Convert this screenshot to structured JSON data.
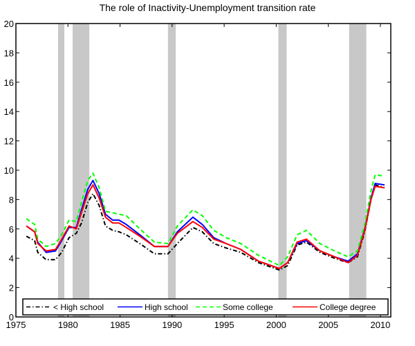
{
  "chart_data": {
    "type": "line",
    "title": "The role of Inactivity-Unemployment transition rate",
    "xlabel": "",
    "ylabel": "",
    "xlim": [
      1975,
      2011
    ],
    "ylim": [
      0,
      20
    ],
    "xticks": [
      1975,
      1980,
      1985,
      1990,
      1995,
      2000,
      2005,
      2010
    ],
    "yticks": [
      0,
      2,
      4,
      6,
      8,
      10,
      12,
      14,
      16,
      18,
      20
    ],
    "grid": false,
    "legend_position": "bottom",
    "shaded_periods": [
      [
        1979.05,
        1979.65
      ],
      [
        1980.45,
        1982.05
      ],
      [
        1989.6,
        1990.35
      ],
      [
        2000.2,
        2001.0
      ],
      [
        2007.0,
        2008.65
      ]
    ],
    "shade_color": "#c8c8c8",
    "x": [
      1976.0,
      1976.8,
      1977.1,
      1977.9,
      1978.8,
      1979.4,
      1980.1,
      1980.8,
      1981.3,
      1981.9,
      1982.4,
      1983.0,
      1983.6,
      1984.3,
      1984.9,
      1985.6,
      1986.9,
      1988.3,
      1989.6,
      1990.5,
      1992.0,
      1992.9,
      1994.0,
      1995.2,
      1996.6,
      1998.3,
      2000.3,
      2001.1,
      2002.0,
      2002.9,
      2004.2,
      2005.6,
      2006.9,
      2007.8,
      2008.5,
      2009.1,
      2009.5,
      2010.4
    ],
    "series": [
      {
        "name": "< High school",
        "color": "#000000",
        "dash": "dash-dot",
        "values": [
          5.5,
          5.2,
          4.4,
          3.9,
          3.9,
          4.4,
          5.4,
          5.7,
          6.4,
          7.8,
          8.4,
          7.6,
          6.2,
          5.9,
          5.8,
          5.6,
          5.0,
          4.3,
          4.3,
          5.0,
          6.1,
          5.8,
          5.0,
          4.7,
          4.4,
          3.7,
          3.2,
          3.5,
          4.9,
          5.1,
          4.4,
          4.0,
          3.7,
          4.1,
          5.8,
          8.0,
          9.0,
          8.8
        ]
      },
      {
        "name": "High school",
        "color": "#0000ff",
        "dash": "solid",
        "values": [
          6.2,
          5.8,
          5.1,
          4.4,
          4.5,
          5.2,
          6.1,
          6.1,
          7.3,
          8.7,
          9.3,
          8.4,
          7.0,
          6.6,
          6.6,
          6.3,
          5.6,
          4.8,
          4.8,
          5.8,
          6.8,
          6.3,
          5.4,
          5.0,
          4.6,
          3.8,
          3.3,
          3.7,
          5.0,
          5.2,
          4.5,
          4.1,
          3.8,
          4.3,
          6.0,
          8.1,
          9.1,
          9.0
        ]
      },
      {
        "name": "Some college",
        "color": "#00ff00",
        "dash": "dashed",
        "values": [
          6.7,
          6.3,
          5.3,
          4.8,
          5.0,
          5.6,
          6.6,
          6.5,
          7.8,
          9.3,
          9.8,
          8.8,
          7.2,
          7.1,
          7.0,
          6.9,
          6.0,
          5.1,
          5.0,
          6.2,
          7.3,
          6.9,
          5.9,
          5.4,
          5.0,
          4.2,
          3.5,
          4.1,
          5.6,
          5.9,
          5.0,
          4.5,
          4.1,
          4.5,
          6.3,
          8.6,
          9.7,
          9.6
        ]
      },
      {
        "name": "College degree",
        "color": "#ff0000",
        "dash": "solid",
        "values": [
          6.2,
          5.8,
          5.0,
          4.5,
          4.6,
          5.3,
          6.2,
          6.0,
          7.1,
          8.4,
          9.0,
          8.1,
          6.8,
          6.4,
          6.4,
          6.1,
          5.5,
          4.8,
          4.8,
          5.7,
          6.5,
          6.1,
          5.3,
          5.0,
          4.6,
          3.8,
          3.3,
          3.7,
          5.1,
          5.3,
          4.5,
          4.1,
          3.7,
          4.2,
          5.9,
          8.0,
          8.9,
          8.8
        ]
      }
    ]
  }
}
